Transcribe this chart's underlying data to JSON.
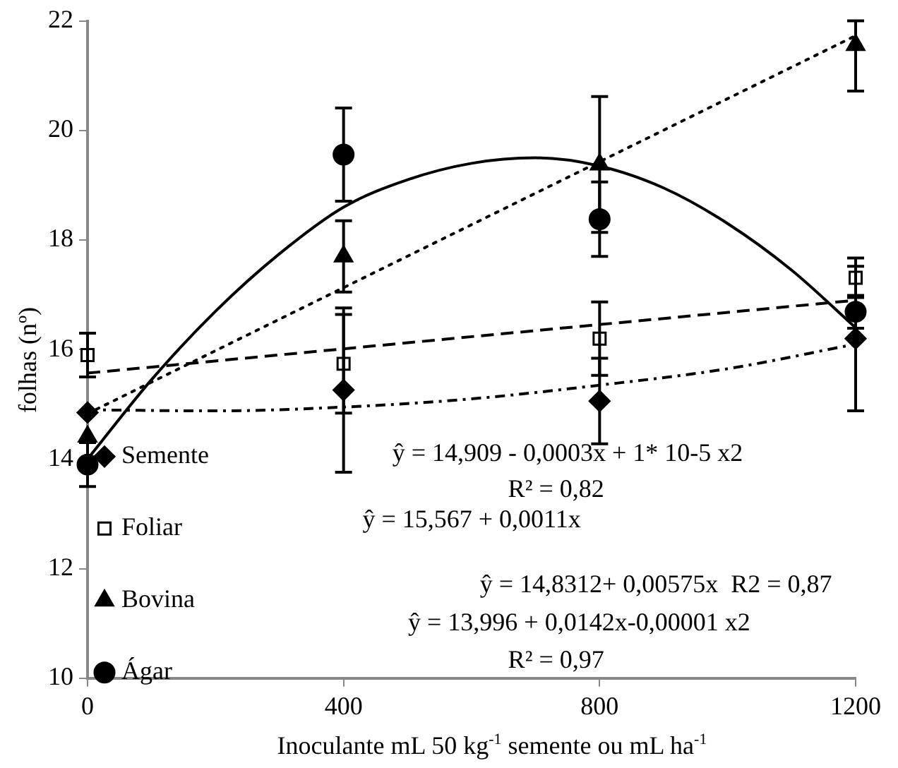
{
  "chart_data": {
    "type": "scatter",
    "xlabel": "Inoculante mL 50 kg$^{-1}$ semente ou mL ha$^{-1}$",
    "ylabel": "folhas (nº)",
    "x": [
      0,
      400,
      800,
      1200
    ],
    "xlim": [
      0,
      1200
    ],
    "xticks": [
      0,
      400,
      800,
      1200
    ],
    "ylim": [
      10,
      22
    ],
    "yticks": [
      10,
      12,
      14,
      16,
      18,
      20,
      22
    ],
    "grid": false,
    "legend": "bottom left",
    "series": [
      {
        "name": "Semente",
        "marker": "diamond",
        "color": "#000000",
        "values": [
          14.85,
          15.26,
          15.06,
          16.2
        ],
        "errors": [
          null,
          1.5,
          0.78,
          1.32
        ]
      },
      {
        "name": "Foliar",
        "marker": "square",
        "color": "#000000",
        "values": [
          15.9,
          15.74,
          16.2,
          17.31
        ],
        "errors": [
          0.4,
          0.9,
          0.67,
          0.36
        ]
      },
      {
        "name": "Bovina",
        "marker": "triangle",
        "color": "#000000",
        "values": [
          14.41,
          17.7,
          19.38,
          21.56
        ],
        "errors": [
          null,
          0.65,
          1.24,
          [
            20.72,
            22
          ]
        ]
      },
      {
        "name": "Ágar",
        "marker": "circle",
        "color": "#000000",
        "values": [
          13.9,
          19.56,
          18.38,
          16.69
        ],
        "errors": [
          0.4,
          0.85,
          0.68,
          0.3
        ]
      },
      {
        "type": "line",
        "line_style": "dashdot",
        "marker": "none",
        "color": "#000000",
        "x": [
          0,
          200,
          400,
          600,
          800,
          1000,
          1200
        ],
        "values": [
          14.9,
          14.88,
          14.95,
          15.1,
          15.35,
          15.65,
          16.1
        ]
      },
      {
        "type": "line",
        "line_style": "dashed",
        "marker": "none",
        "color": "#000000",
        "x": [
          0,
          1200
        ],
        "values": [
          15.57,
          16.9
        ]
      },
      {
        "type": "line",
        "line_style": "dotted",
        "marker": "none",
        "color": "#000000",
        "x": [
          0,
          1200
        ],
        "values": [
          14.83,
          21.73
        ]
      },
      {
        "type": "line",
        "line_style": "solid",
        "marker": "none",
        "color": "#000000",
        "x": [
          0,
          100,
          200,
          300,
          400,
          500,
          600,
          700,
          800,
          900,
          1000,
          1100,
          1200
        ],
        "values": [
          14.0,
          15.45,
          16.7,
          17.75,
          18.6,
          19.1,
          19.4,
          19.5,
          19.35,
          18.95,
          18.3,
          17.45,
          16.4
        ]
      }
    ],
    "annotations": [
      "ŷ = 14,909 - 0,0003x + 1* 10-5 x2",
      "R² = 0,82",
      "ŷ = 15,567 + 0,0011x",
      "ŷ = 14,8312+ 0,00575x  R2 = 0,87",
      "ŷ = 13,996 + 0,0142x-0,00001 x2",
      "R² = 0,97"
    ]
  }
}
